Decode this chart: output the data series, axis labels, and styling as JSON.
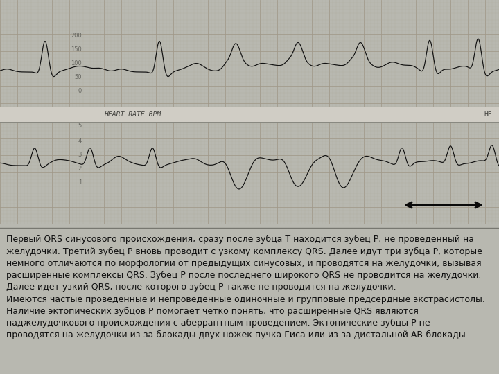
{
  "fig_bg": "#b8b8b0",
  "ecg_bg": "#c8c5b8",
  "grid_minor_color": "#b0ab9e",
  "grid_major_color": "#a09888",
  "ecg_color": "#111111",
  "text_color": "#111111",
  "hrm_band_color": "#d0cdc5",
  "hrm_label": "HEART RATE BPM",
  "hrm_right": "HE",
  "scale_color": "#666660",
  "upper_scale_labels": [
    "200",
    "150",
    "100",
    "50",
    "0"
  ],
  "body_text": "Первый QRS синусового происхождения, сразу после зубца Т находится зубец Р, не проведенный на\nжелудочки. Третий зубец Р вновь проводит с узкому комплексу QRS. Далее идут три зубца Р, которые\nнемного отличаются по морфологии от предыдущих синусовых, и проводятся на желудочки, вызывая\nрасширенные комплексы QRS. Зубец Р после последнего широкого QRS не проводится на желудочки.\nДалее идет узкий QRS, после которого зубец Р также не проводится на желудочки.\nИмеются частые проведенные и непроведенные одиночные и групповые предсердные экстрасистолы.\nНаличие эктопических зубцов Р помогает четко понять, что расширенные QRS являются\nнаджелудочкового происхождения с аберрантным проведением. Эктопические зубцы Р не\nпроводятся на желудочки из-за блокады двух ножек пучка Гиса или из-за дистальной АВ-блокады.",
  "body_fontsize": 9.0,
  "hrm_fontsize": 7.0,
  "scale_fontsize": 6.0
}
